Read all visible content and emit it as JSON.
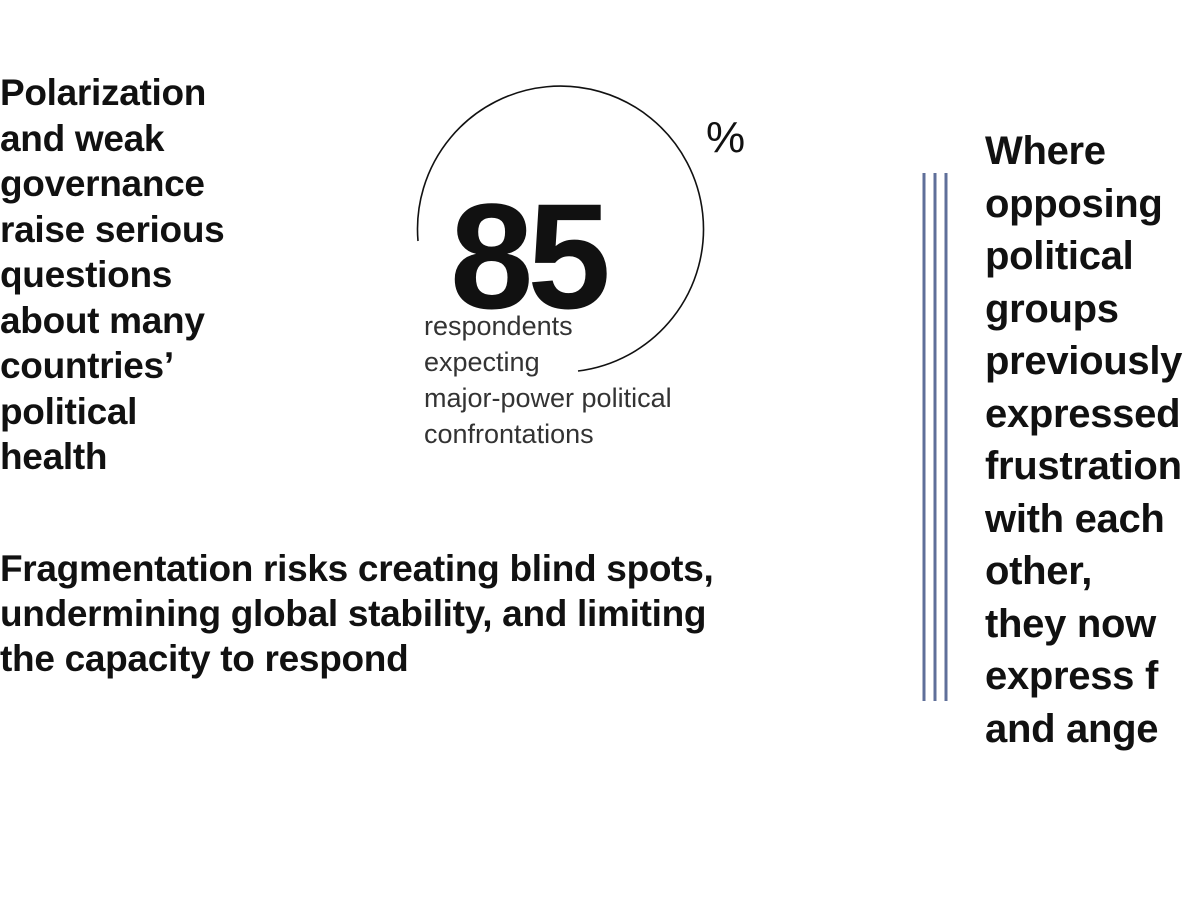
{
  "left_heading": "Polarization\nand weak\ngovernance\nraise serious\nquestions\nabout many\ncountries’\npolitical\nhealth",
  "stat": {
    "number": "85",
    "unit": "%",
    "caption": "respondents\nexpecting\nmajor-power political\nconfrontations"
  },
  "bottom_statement": "Fragmentation risks creating blind spots,\nundermining global stability, and limiting\nthe capacity to respond",
  "right_quote": "Where\nopposing\npolitical\ngroups\npreviously\nexpressed\nfrustration\nwith each\nother,\nthey now\nexpress f\nand ange",
  "colors": {
    "text": "#111111",
    "divider": "#5f6f9a"
  }
}
